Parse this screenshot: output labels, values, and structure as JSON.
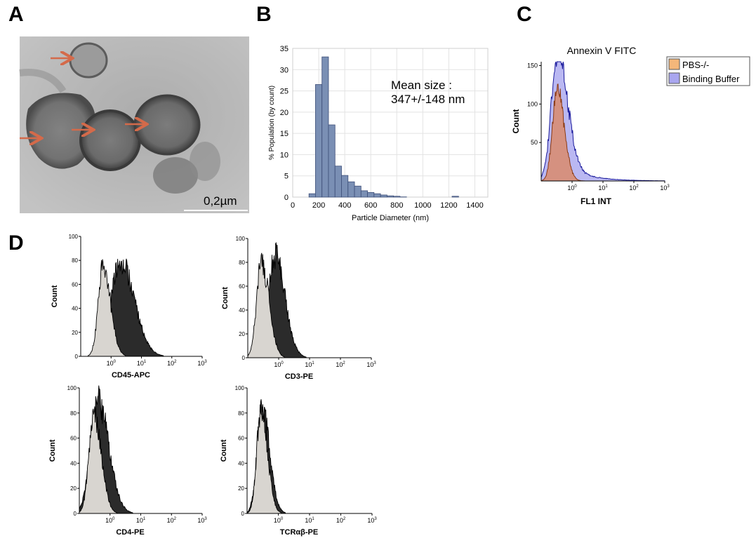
{
  "panels": {
    "a": {
      "letter": "A",
      "scale_bar_label": "0,2µm",
      "image_subject": "Transmission electron micrograph of vesicles",
      "arrow_count": 4
    },
    "b": {
      "letter": "B"
    },
    "c": {
      "letter": "C"
    },
    "d": {
      "letter": "D"
    }
  },
  "colors": {
    "histogram_fill": "#7a8fb4",
    "histogram_edge": "#3d4e78",
    "pbs_fill": "#d9896c",
    "pbs_line": "#8b3a13",
    "binding_fill": "#a9a6ef",
    "binding_line": "#1a1a9c",
    "isotype_fill": "#d8d5d0",
    "marker_fill": "#2b2b2b",
    "arrow": "#d46a4a",
    "legend_pbs": "#f4b77a",
    "legend_binding": "#a9a6f0"
  },
  "chart_data": [
    {
      "id": "B",
      "type": "bar",
      "title": "",
      "xlabel": "Particle Diameter (nm)",
      "ylabel": "% Population (by count)",
      "xlim": [
        0,
        1500
      ],
      "ylim": [
        0,
        35
      ],
      "xticks": [
        0,
        200,
        400,
        600,
        800,
        1000,
        1200,
        1400
      ],
      "yticks": [
        0,
        5,
        10,
        15,
        20,
        25,
        30,
        35
      ],
      "grid": true,
      "bin_width": 50,
      "x": [
        150,
        200,
        250,
        300,
        350,
        400,
        450,
        500,
        550,
        600,
        650,
        700,
        750,
        800,
        850,
        900,
        950,
        1000,
        1050,
        1100,
        1150,
        1200,
        1250
      ],
      "values": [
        0.8,
        26.5,
        33.0,
        17.0,
        7.3,
        5.1,
        3.6,
        2.6,
        1.5,
        1.1,
        0.8,
        0.5,
        0.3,
        0.2,
        0.05,
        0,
        0,
        0,
        0,
        0,
        0,
        0,
        0.2
      ],
      "annotation": [
        "Mean size :",
        "347+/-148 nm"
      ]
    },
    {
      "id": "C",
      "type": "area",
      "title": "Annexin V FITC",
      "xlabel": "FL1 INT",
      "ylabel": "Count",
      "xscale": "log",
      "xlim": [
        0.1,
        1000
      ],
      "ylim": [
        0,
        155
      ],
      "xticks": [
        "10^0",
        "10^1",
        "10^2",
        "10^3"
      ],
      "yticks": [
        50,
        100,
        150
      ],
      "legend": "right",
      "series": [
        {
          "name": "PBS-/-",
          "peak_x": 0.33,
          "peak_y": 120,
          "spread": 0.19,
          "tail": 0
        },
        {
          "name": "Binding Buffer",
          "peak_x": 0.35,
          "peak_y": 142,
          "spread": 0.26,
          "tail": 28
        }
      ]
    },
    {
      "id": "D1",
      "type": "area",
      "title": "",
      "xlabel": "CD45-APC",
      "ylabel": "Count",
      "xscale": "log",
      "xlim": [
        0.1,
        1000
      ],
      "ylim": [
        0,
        100
      ],
      "yticks": [
        0,
        20,
        40,
        60,
        80,
        100
      ],
      "xticks": [
        "10^0",
        "10^1",
        "10^2",
        "10^3"
      ],
      "series": [
        {
          "role": "isotype",
          "peak_x": 0.55,
          "peak_y": 76,
          "spread": 0.2
        },
        {
          "role": "marker",
          "peak_x": 2.0,
          "peak_y": 79,
          "spread": 0.38
        }
      ]
    },
    {
      "id": "D2",
      "type": "area",
      "title": "",
      "xlabel": "CD3-PE",
      "ylabel": "Count",
      "xscale": "log",
      "xlim": [
        0.1,
        1000
      ],
      "ylim": [
        0,
        100
      ],
      "yticks": [
        0,
        20,
        40,
        60,
        80,
        100
      ],
      "xticks": [
        "10^0",
        "10^1",
        "10^2",
        "10^3"
      ],
      "series": [
        {
          "role": "isotype",
          "peak_x": 0.28,
          "peak_y": 80,
          "spread": 0.2
        },
        {
          "role": "marker",
          "peak_x": 0.75,
          "peak_y": 86,
          "spread": 0.27
        }
      ]
    },
    {
      "id": "D3",
      "type": "area",
      "title": "",
      "xlabel": "CD4-PE",
      "ylabel": "Count",
      "xscale": "log",
      "xlim": [
        0.1,
        1000
      ],
      "ylim": [
        0,
        100
      ],
      "yticks": [
        0,
        20,
        40,
        60,
        80,
        100
      ],
      "xticks": [
        "10^0",
        "10^1",
        "10^2",
        "10^3"
      ],
      "series": [
        {
          "role": "isotype",
          "peak_x": 0.3,
          "peak_y": 80,
          "spread": 0.2
        },
        {
          "role": "marker",
          "peak_x": 0.4,
          "peak_y": 90,
          "spread": 0.3
        }
      ]
    },
    {
      "id": "D4",
      "type": "area",
      "title": "",
      "xlabel": "TCRαβ-PE",
      "ylabel": "Count",
      "xscale": "log",
      "xlim": [
        0.1,
        1000
      ],
      "ylim": [
        0,
        100
      ],
      "yticks": [
        0,
        20,
        40,
        60,
        80,
        100
      ],
      "xticks": [
        "10^0",
        "10^1",
        "10^2",
        "10^3"
      ],
      "series": [
        {
          "role": "isotype",
          "peak_x": 0.28,
          "peak_y": 84,
          "spread": 0.17
        },
        {
          "role": "marker",
          "peak_x": 0.3,
          "peak_y": 84,
          "spread": 0.2
        }
      ]
    }
  ]
}
